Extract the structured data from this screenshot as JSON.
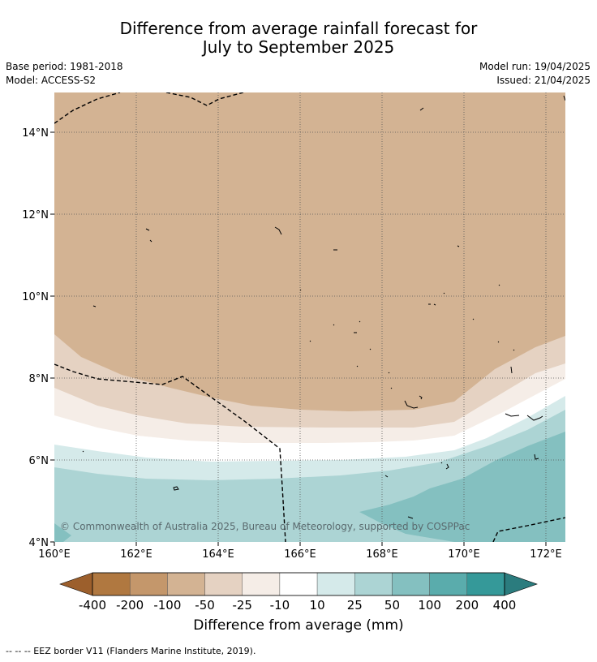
{
  "title": {
    "line1": "Difference from average rainfall forecast for",
    "line2": "July to September 2025"
  },
  "meta": {
    "base_period": "Base period: 1981-2018",
    "model": "Model: ACCESS-S2",
    "model_run": "Model run: 19/04/2025",
    "issued": "Issued: 21/04/2025"
  },
  "map": {
    "lon_range": [
      160,
      172.5
    ],
    "lat_range": [
      4,
      15
    ],
    "lon_ticks": [
      "160°E",
      "162°E",
      "164°E",
      "166°E",
      "168°E",
      "170°E",
      "172°E"
    ],
    "lat_ticks": [
      "14°N",
      "12°N",
      "10°N",
      "8°N",
      "6°N",
      "4°N"
    ],
    "grid": "dotted",
    "copyright": "© Commonwealth of Australia 2025, Bureau of Meteorology, supported by COSPPac"
  },
  "colorbar": {
    "labels": [
      "-400",
      "-200",
      "-100",
      "-50",
      "-25",
      "-10",
      "10",
      "25",
      "50",
      "100",
      "200",
      "400"
    ],
    "colors": [
      "#9c5f2c",
      "#b07840",
      "#c4976b",
      "#d3b393",
      "#e5d2c2",
      "#f5ede7",
      "#ffffff",
      "#d5eaea",
      "#acd4d4",
      "#84c0c0",
      "#5aacac",
      "#359999",
      "#2b7c7e"
    ],
    "title": "Difference from average (mm)"
  },
  "footer": "--  --  -- EEZ border V11 (Flanders Marine Institute, 2019)."
}
